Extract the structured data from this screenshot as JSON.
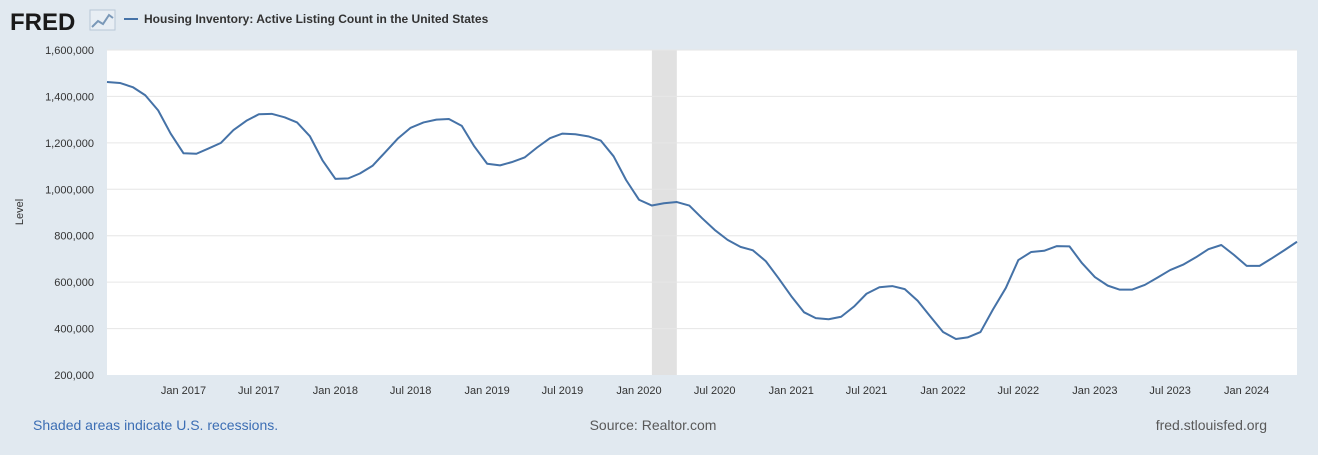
{
  "header": {
    "logo_text": "FRED",
    "series_title": "Housing Inventory: Active Listing Count in the United States"
  },
  "footer": {
    "recession_note": "Shaded areas indicate U.S. recessions.",
    "source": "Source: Realtor.com",
    "site": "fred.stlouisfed.org"
  },
  "colors": {
    "background": "#e1e9f0",
    "plot_background": "#ffffff",
    "line": "#4572a7",
    "recession_shade": "#e1e1e1",
    "grid": "#e6e6e6",
    "text": "#333333",
    "footer_text": "#595959",
    "link": "#3c6eb4"
  },
  "chart_data": {
    "type": "line",
    "title": "Housing Inventory: Active Listing Count in the United States",
    "xlabel": "",
    "ylabel": "Level",
    "ylim": [
      200000,
      1600000
    ],
    "yticks": [
      200000,
      400000,
      600000,
      800000,
      1000000,
      1200000,
      1400000,
      1600000
    ],
    "ytick_labels": [
      "200,000",
      "400,000",
      "600,000",
      "800,000",
      "1,000,000",
      "1,200,000",
      "1,400,000",
      "1,600,000"
    ],
    "xlim": [
      "2016-07-01",
      "2024-05-01"
    ],
    "xticks": [
      "2017-01-01",
      "2017-07-01",
      "2018-01-01",
      "2018-07-01",
      "2019-01-01",
      "2019-07-01",
      "2020-01-01",
      "2020-07-01",
      "2021-01-01",
      "2021-07-01",
      "2022-01-01",
      "2022-07-01",
      "2023-01-01",
      "2023-07-01",
      "2024-01-01"
    ],
    "xtick_labels": [
      "Jan 2017",
      "Jul 2017",
      "Jan 2018",
      "Jul 2018",
      "Jan 2019",
      "Jul 2019",
      "Jan 2020",
      "Jul 2020",
      "Jan 2021",
      "Jul 2021",
      "Jan 2022",
      "Jul 2022",
      "Jan 2023",
      "Jul 2023",
      "Jan 2024"
    ],
    "grid": true,
    "recessions": [
      {
        "start": "2020-02-01",
        "end": "2020-04-01"
      }
    ],
    "series": [
      {
        "name": "",
        "x": [
          "2016-07-01",
          "2016-08-01",
          "2016-09-01",
          "2016-10-01",
          "2016-11-01",
          "2016-12-01",
          "2017-01-01",
          "2017-02-01",
          "2017-03-01",
          "2017-04-01",
          "2017-05-01",
          "2017-06-01",
          "2017-07-01",
          "2017-08-01",
          "2017-09-01",
          "2017-10-01",
          "2017-11-01",
          "2017-12-01",
          "2018-01-01",
          "2018-02-01",
          "2018-03-01",
          "2018-04-01",
          "2018-05-01",
          "2018-06-01",
          "2018-07-01",
          "2018-08-01",
          "2018-09-01",
          "2018-10-01",
          "2018-11-01",
          "2018-12-01",
          "2019-01-01",
          "2019-02-01",
          "2019-03-01",
          "2019-04-01",
          "2019-05-01",
          "2019-06-01",
          "2019-07-01",
          "2019-08-01",
          "2019-09-01",
          "2019-10-01",
          "2019-11-01",
          "2019-12-01",
          "2020-01-01",
          "2020-02-01",
          "2020-03-01",
          "2020-04-01",
          "2020-05-01",
          "2020-06-01",
          "2020-07-01",
          "2020-08-01",
          "2020-09-01",
          "2020-10-01",
          "2020-11-01",
          "2020-12-01",
          "2021-01-01",
          "2021-02-01",
          "2021-03-01",
          "2021-04-01",
          "2021-05-01",
          "2021-06-01",
          "2021-07-01",
          "2021-08-01",
          "2021-09-01",
          "2021-10-01",
          "2021-11-01",
          "2021-12-01",
          "2022-01-01",
          "2022-02-01",
          "2022-03-01",
          "2022-04-01",
          "2022-05-01",
          "2022-06-01",
          "2022-07-01",
          "2022-08-01",
          "2022-09-01",
          "2022-10-01",
          "2022-11-01",
          "2022-12-01",
          "2023-01-01",
          "2023-02-01",
          "2023-03-01",
          "2023-04-01",
          "2023-05-01",
          "2023-06-01",
          "2023-07-01",
          "2023-08-01",
          "2023-09-01",
          "2023-10-01",
          "2023-11-01",
          "2023-12-01",
          "2024-01-01",
          "2024-02-01",
          "2024-03-01",
          "2024-04-01",
          "2024-05-01"
        ],
        "values": [
          1462000,
          1458000,
          1440000,
          1405000,
          1340000,
          1240000,
          1155000,
          1153000,
          1175000,
          1200000,
          1255000,
          1295000,
          1323000,
          1325000,
          1310000,
          1288000,
          1228000,
          1125000,
          1045000,
          1047000,
          1068000,
          1102000,
          1160000,
          1220000,
          1265000,
          1288000,
          1300000,
          1303000,
          1273000,
          1185000,
          1110000,
          1103000,
          1117000,
          1137000,
          1180000,
          1220000,
          1240000,
          1237000,
          1228000,
          1210000,
          1142000,
          1040000,
          955000,
          930000,
          940000,
          945000,
          930000,
          875000,
          825000,
          782000,
          752000,
          737000,
          690000,
          618000,
          540000,
          470000,
          445000,
          440000,
          451000,
          495000,
          550000,
          578000,
          583000,
          570000,
          520000,
          453000,
          385000,
          355000,
          362000,
          385000,
          482000,
          575000,
          695000,
          730000,
          735000,
          755000,
          754000,
          682000,
          622000,
          585000,
          568000,
          568000,
          588000,
          620000,
          652000,
          675000,
          707000,
          742000,
          760000,
          718000,
          670000,
          670000,
          702000,
          738000,
          774000
        ]
      }
    ]
  }
}
